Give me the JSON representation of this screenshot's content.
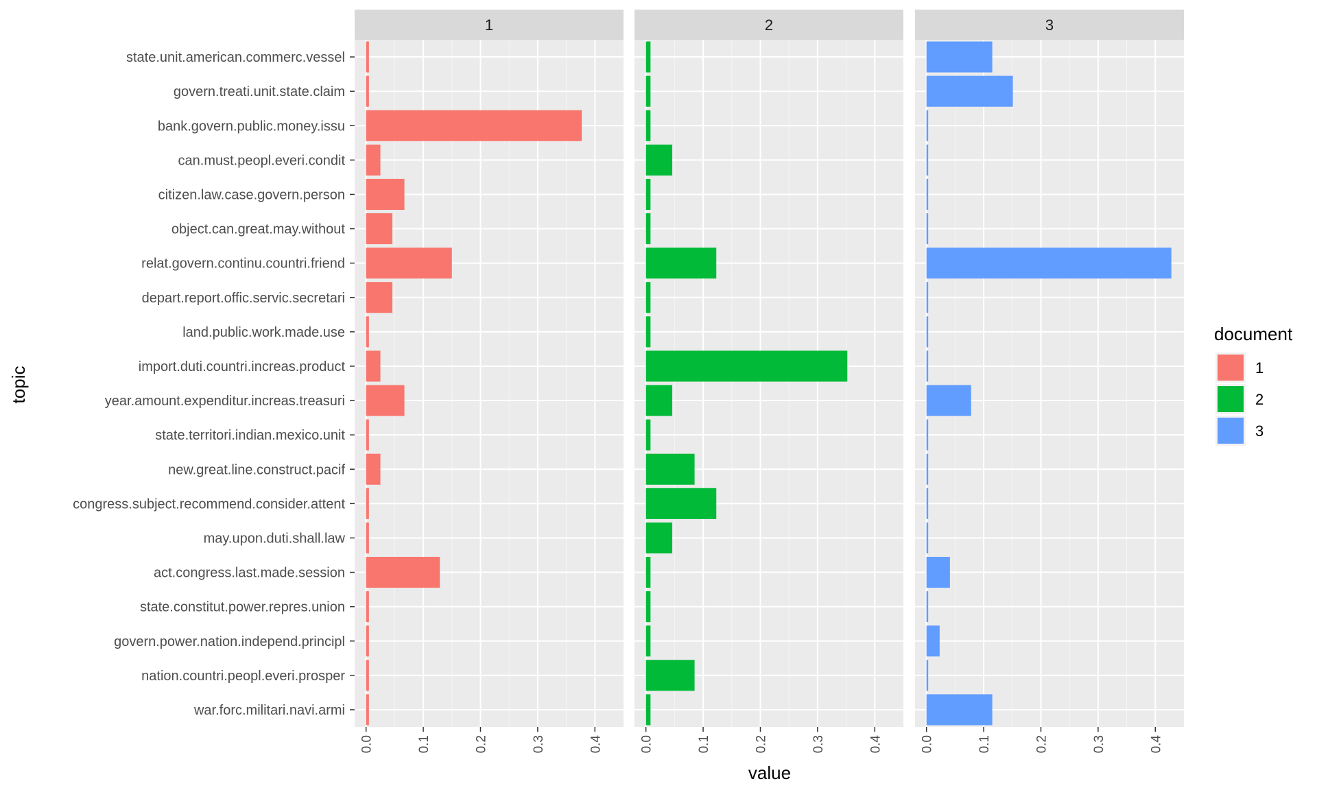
{
  "chart_data": {
    "type": "bar",
    "orientation": "horizontal",
    "xlabel": "value",
    "ylabel": "topic",
    "xlim": [
      -0.02,
      0.45
    ],
    "x_ticks": [
      "0.0",
      "0.1",
      "0.2",
      "0.3",
      "0.4"
    ],
    "x_tick_values": [
      0,
      0.1,
      0.2,
      0.3,
      0.4
    ],
    "grid": true,
    "legend": {
      "title": "document",
      "position": "right",
      "entries": [
        {
          "label": "1",
          "color": "#F8766D"
        },
        {
          "label": "2",
          "color": "#00BA38"
        },
        {
          "label": "3",
          "color": "#619CFF"
        }
      ]
    },
    "categories": [
      "state.unit.american.commerc.vessel",
      "govern.treati.unit.state.claim",
      "bank.govern.public.money.issu",
      "can.must.peopl.everi.condit",
      "citizen.law.case.govern.person",
      "object.can.great.may.without",
      "relat.govern.continu.countri.friend",
      "depart.report.offic.servic.secretari",
      "land.public.work.made.use",
      "import.duti.countri.increas.product",
      "year.amount.expenditur.increas.treasuri",
      "state.territori.indian.mexico.unit",
      "new.great.line.construct.pacif",
      "congress.subject.recommend.consider.attent",
      "may.upon.duti.shall.law",
      "act.congress.last.made.session",
      "state.constitut.power.repres.union",
      "govern.power.nation.independ.principl",
      "nation.countri.peopl.everi.prosper",
      "war.forc.militari.navi.armi"
    ],
    "panels": [
      {
        "label": "1",
        "color": "#F8766D",
        "values": [
          0.005,
          0.005,
          0.377,
          0.025,
          0.067,
          0.046,
          0.15,
          0.046,
          0.005,
          0.025,
          0.067,
          0.005,
          0.025,
          0.005,
          0.005,
          0.129,
          0.005,
          0.005,
          0.005,
          0.005
        ]
      },
      {
        "label": "2",
        "color": "#00BA38",
        "values": [
          0.008,
          0.008,
          0.008,
          0.046,
          0.008,
          0.008,
          0.123,
          0.008,
          0.008,
          0.352,
          0.046,
          0.008,
          0.085,
          0.123,
          0.046,
          0.008,
          0.008,
          0.008,
          0.085,
          0.008
        ]
      },
      {
        "label": "3",
        "color": "#619CFF",
        "values": [
          0.115,
          0.151,
          0.003,
          0.003,
          0.003,
          0.003,
          0.428,
          0.003,
          0.003,
          0.003,
          0.078,
          0.003,
          0.003,
          0.003,
          0.003,
          0.041,
          0.003,
          0.023,
          0.003,
          0.115
        ]
      }
    ]
  }
}
